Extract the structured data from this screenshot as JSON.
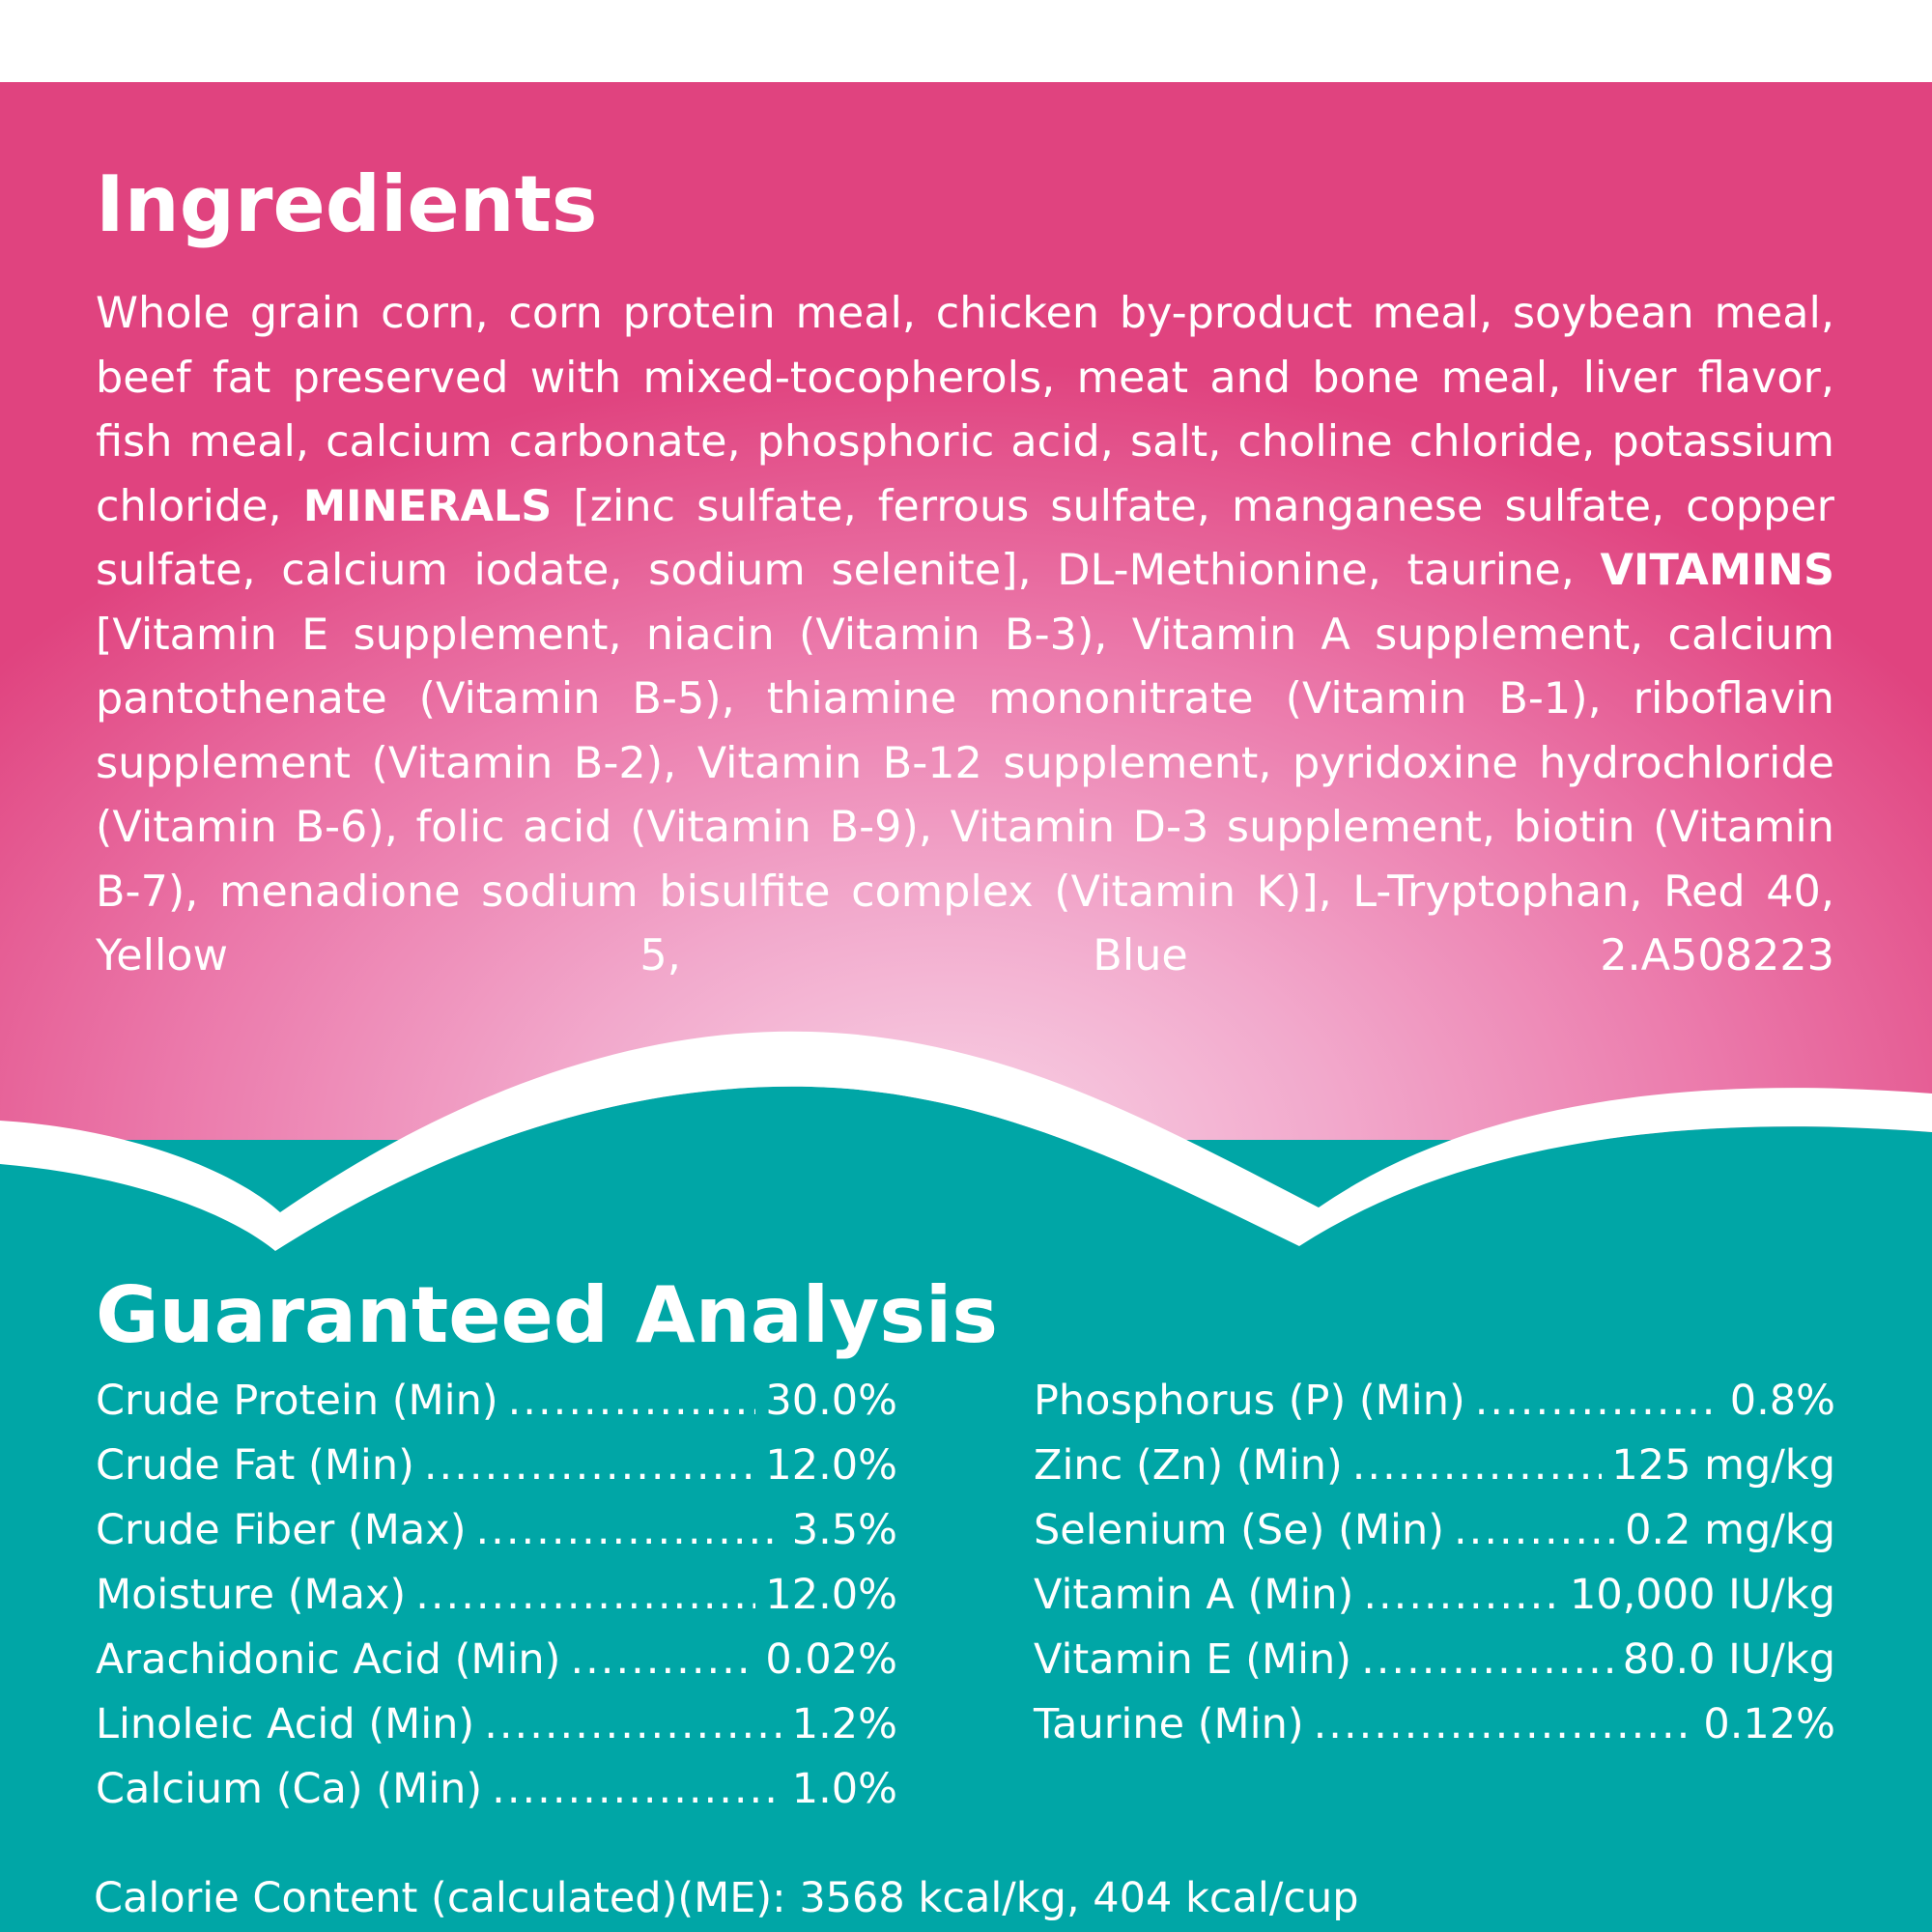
{
  "colors": {
    "pink_edge": "#e0437f",
    "pink_center": "#f8d3e6",
    "teal": "#00a6a6",
    "text": "#ffffff"
  },
  "ingredients": {
    "title": "Ingredients",
    "part1": "Whole grain corn, corn protein meal, chicken by-product meal, soybean meal, beef fat preserved with mixed-tocopherols, meat and bone meal, liver flavor, fish meal, calcium carbonate, phosphoric acid, salt, choline chloride, potassium chloride,",
    "minerals_label": "MINERALS",
    "part2": "[zinc sulfate, ferrous sulfate, manganese sulfate, copper sulfate, calcium iodate, sodium selenite], DL-Methionine, taurine,",
    "vitamins_label": "VITAMINS",
    "part3": "[Vitamin E supplement, niacin (Vitamin B-3), Vitamin A supplement, calcium pantothenate (Vitamin B-5), thiamine mononitrate (Vitamin B-1), riboflavin supplement (Vitamin B-2), Vitamin B-12 supplement, pyridoxine hydrochloride (Vitamin B-6), folic acid (Vitamin B-9), Vitamin D-3 supplement, biotin (Vitamin B-7), menadione sodium bisulfite complex (Vitamin K)], L-Tryptophan, Red 40, Yellow 5, Blue 2.",
    "code": "A508223"
  },
  "analysis": {
    "title": "Guaranteed Analysis",
    "left": [
      {
        "label": "Crude Protein (Min)",
        "value": "30.0%"
      },
      {
        "label": "Crude Fat (Min)",
        "value": "12.0%"
      },
      {
        "label": "Crude Fiber (Max)",
        "value": "3.5%"
      },
      {
        "label": "Moisture (Max)",
        "value": "12.0%"
      },
      {
        "label": "Arachidonic Acid (Min)",
        "value": "0.02%"
      },
      {
        "label": "Linoleic Acid (Min)",
        "value": "1.2%"
      },
      {
        "label": "Calcium (Ca) (Min)",
        "value": "1.0%"
      }
    ],
    "right": [
      {
        "label": "Phosphorus (P) (Min)",
        "value": "0.8%"
      },
      {
        "label": "Zinc (Zn) (Min)",
        "value": "125 mg/kg"
      },
      {
        "label": "Selenium (Se) (Min)",
        "value": "0.2 mg/kg"
      },
      {
        "label": "Vitamin A (Min)",
        "value": "10,000 IU/kg"
      },
      {
        "label": "Vitamin E (Min)",
        "value": "80.0 IU/kg"
      },
      {
        "label": "Taurine (Min)",
        "value": "0.12%"
      }
    ],
    "calorie": "Calorie Content (calculated)(ME): 3568 kcal/kg, 404 kcal/cup"
  }
}
